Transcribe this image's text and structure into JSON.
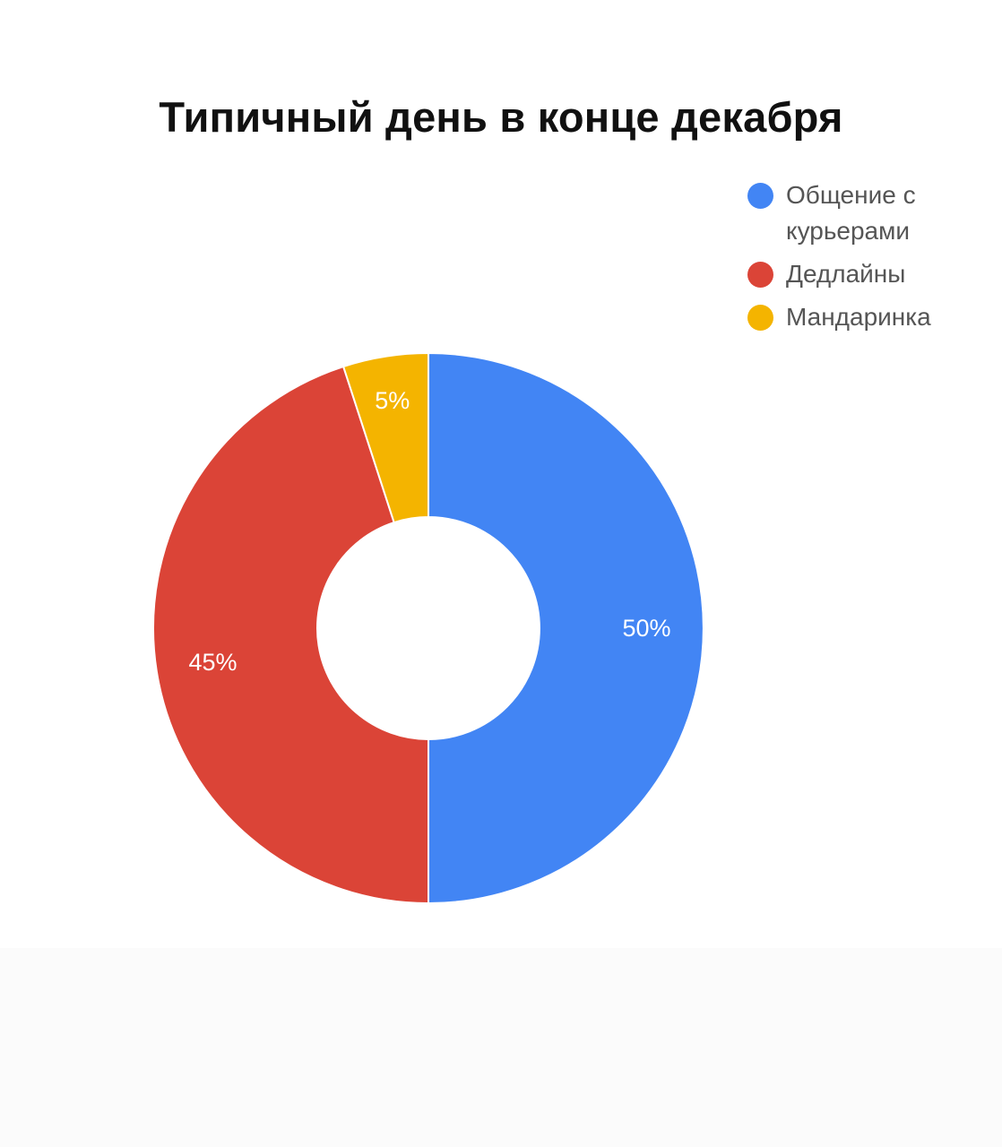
{
  "chart_data": {
    "type": "pie",
    "variant": "donut",
    "title": "Типичный день в конце декабря",
    "legend_position": "top-right",
    "slices": [
      {
        "label": "Общение с курьерами",
        "value": 50,
        "value_label": "50%",
        "color": "#4285F4"
      },
      {
        "label": "Дедлайны",
        "value": 45,
        "value_label": "45%",
        "color": "#DB4437"
      },
      {
        "label": "Мандаринка",
        "value": 5,
        "value_label": "5%",
        "color": "#F4B400"
      }
    ]
  }
}
